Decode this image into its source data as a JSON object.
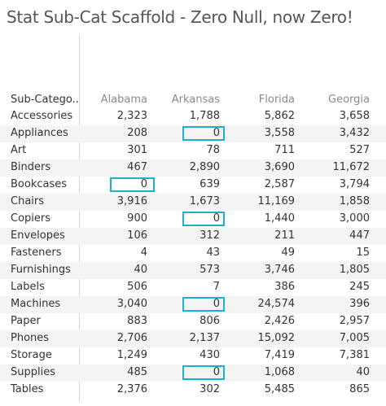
{
  "title": "Stat Sub-Cat Scaffold - Zero Null, now Zero!",
  "accent_color": "#1ab2cf",
  "table": {
    "row_header": "Sub-Catego..",
    "columns": [
      "Alabama",
      "Arkansas",
      "Florida",
      "Georgia"
    ],
    "rows": [
      {
        "label": "Accessories",
        "values": [
          "2,323",
          "1,788",
          "5,862",
          "3,658"
        ],
        "highlight": null
      },
      {
        "label": "Appliances",
        "values": [
          "208",
          "0",
          "3,558",
          "3,432"
        ],
        "highlight": 1
      },
      {
        "label": "Art",
        "values": [
          "301",
          "78",
          "711",
          "527"
        ],
        "highlight": null
      },
      {
        "label": "Binders",
        "values": [
          "467",
          "2,890",
          "3,690",
          "11,672"
        ],
        "highlight": null
      },
      {
        "label": "Bookcases",
        "values": [
          "0",
          "639",
          "2,587",
          "3,794"
        ],
        "highlight": 0
      },
      {
        "label": "Chairs",
        "values": [
          "3,916",
          "1,673",
          "11,169",
          "1,858"
        ],
        "highlight": null
      },
      {
        "label": "Copiers",
        "values": [
          "900",
          "0",
          "1,440",
          "3,000"
        ],
        "highlight": 1
      },
      {
        "label": "Envelopes",
        "values": [
          "106",
          "312",
          "211",
          "447"
        ],
        "highlight": null
      },
      {
        "label": "Fasteners",
        "values": [
          "4",
          "43",
          "49",
          "15"
        ],
        "highlight": null
      },
      {
        "label": "Furnishings",
        "values": [
          "40",
          "573",
          "3,746",
          "1,805"
        ],
        "highlight": null
      },
      {
        "label": "Labels",
        "values": [
          "506",
          "7",
          "386",
          "245"
        ],
        "highlight": null
      },
      {
        "label": "Machines",
        "values": [
          "3,040",
          "0",
          "24,574",
          "396"
        ],
        "highlight": 1
      },
      {
        "label": "Paper",
        "values": [
          "883",
          "806",
          "2,426",
          "2,957"
        ],
        "highlight": null
      },
      {
        "label": "Phones",
        "values": [
          "2,706",
          "2,137",
          "15,092",
          "7,005"
        ],
        "highlight": null
      },
      {
        "label": "Storage",
        "values": [
          "1,249",
          "430",
          "7,419",
          "7,381"
        ],
        "highlight": null
      },
      {
        "label": "Supplies",
        "values": [
          "485",
          "0",
          "1,068",
          "40"
        ],
        "highlight": 1
      },
      {
        "label": "Tables",
        "values": [
          "2,376",
          "302",
          "5,485",
          "865"
        ],
        "highlight": null
      }
    ]
  }
}
